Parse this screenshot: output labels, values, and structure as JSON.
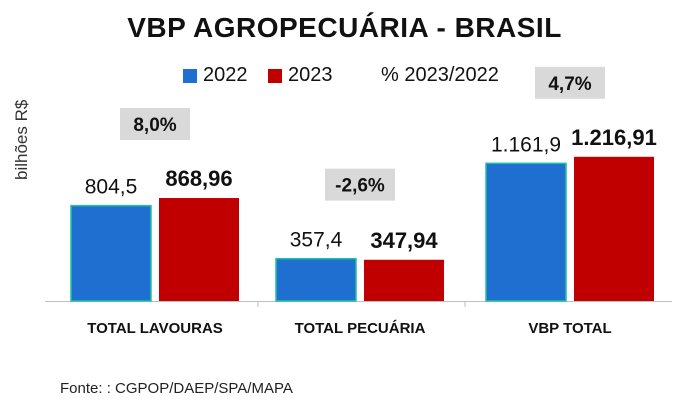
{
  "chart_data": {
    "type": "bar",
    "title": "VBP AGROPECUÁRIA - BRASIL",
    "ylabel": "bilhões R$",
    "xlabel": "",
    "categories": [
      "TOTAL LAVOURAS",
      "TOTAL PECUÁRIA",
      "VBP TOTAL"
    ],
    "series": [
      {
        "name": "2022",
        "values": [
          804.5,
          357.4,
          1161.9
        ],
        "labels": [
          "804,5",
          "357,4",
          "1.161,9"
        ],
        "color": "#1F6FD1"
      },
      {
        "name": "2023",
        "values": [
          868.96,
          347.94,
          1216.91
        ],
        "labels": [
          "868,96",
          "347,94",
          "1.216,91"
        ],
        "color": "#C00000"
      }
    ],
    "change_label": "% 2023/2022",
    "changes": [
      "8,0%",
      "-2,6%",
      "4,7%"
    ],
    "ylim": [
      0,
      1400
    ],
    "grid": false,
    "legend": "top"
  },
  "source": "Fonte: : CGPOP/DAEP/SPA/MAPA",
  "colors": {
    "bar_2022": "#1F6FD1",
    "bar_2023": "#C00000",
    "bar_2022_outline": "#1FC3A0",
    "change_box": "#D9D9D9",
    "axis": "#BFBFBF"
  }
}
